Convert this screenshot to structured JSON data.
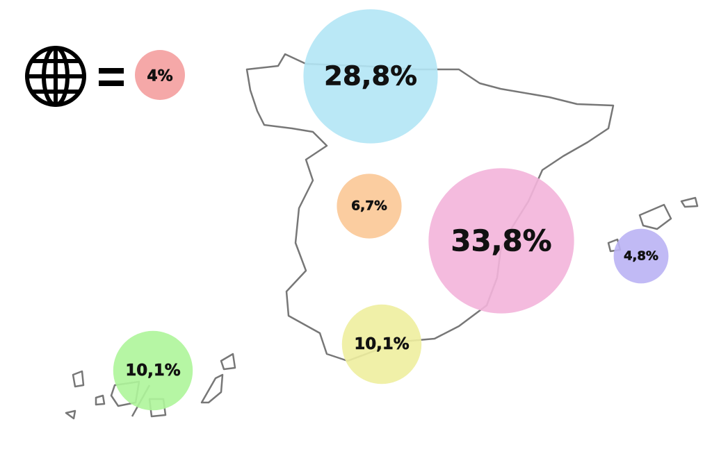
{
  "chart_data": {
    "type": "bubble",
    "key": {
      "value": 4,
      "label": "4%",
      "color": "#f4a3a3"
    },
    "values": [
      28.8,
      6.7,
      33.8,
      4.8,
      10.1,
      10.1
    ],
    "value_labels": [
      "28,8%",
      "6,7%",
      "33,8%",
      "4,8%",
      "10,1%",
      "10,1%"
    ],
    "colors": [
      "#b3e6f5",
      "#fbc896",
      "#f3b4da",
      "#bab2f4",
      "#eeee9e",
      "#aef59a"
    ]
  }
}
